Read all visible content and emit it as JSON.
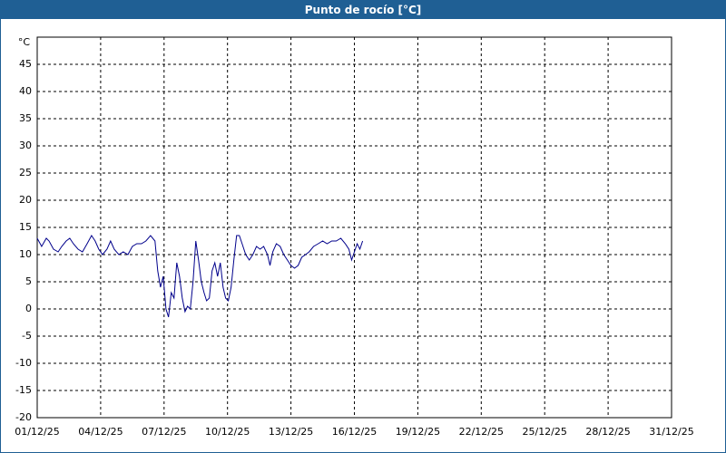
{
  "chart_data": {
    "type": "line",
    "title": "Punto de rocío [°C]",
    "y_axis_label": "°C",
    "x": [
      1.0,
      1.21,
      1.43,
      1.56,
      1.77,
      1.99,
      2.16,
      2.37,
      2.54,
      2.71,
      2.93,
      3.14,
      3.36,
      3.57,
      3.74,
      3.91,
      4.09,
      4.3,
      4.47,
      4.64,
      4.86,
      5.07,
      5.29,
      5.5,
      5.71,
      5.93,
      6.14,
      6.36,
      6.57,
      6.7,
      6.83,
      6.96,
      7.09,
      7.21,
      7.34,
      7.47,
      7.6,
      7.73,
      7.86,
      7.99,
      8.11,
      8.24,
      8.37,
      8.5,
      8.63,
      8.76,
      8.89,
      9.01,
      9.14,
      9.27,
      9.4,
      9.53,
      9.66,
      9.79,
      9.91,
      10.04,
      10.17,
      10.3,
      10.43,
      10.56,
      10.69,
      10.86,
      11.03,
      11.2,
      11.37,
      11.54,
      11.71,
      11.89,
      12.01,
      12.14,
      12.31,
      12.49,
      12.66,
      12.83,
      13.0,
      13.17,
      13.34,
      13.51,
      13.69,
      13.86,
      14.07,
      14.29,
      14.5,
      14.71,
      14.93,
      15.14,
      15.36,
      15.57,
      15.74,
      15.87,
      16.0,
      16.13,
      16.26,
      16.39
    ],
    "values": [
      13,
      11.5,
      13,
      12.5,
      11,
      10.5,
      11.5,
      12.5,
      13,
      12,
      11,
      10.5,
      12,
      13.5,
      12.5,
      11,
      10,
      11,
      12.5,
      11,
      10,
      10.5,
      10,
      11.5,
      12,
      12,
      12.5,
      13.5,
      12.5,
      7,
      4,
      6,
      0,
      -1.5,
      3,
      2,
      8.5,
      6,
      2,
      -0.5,
      0.5,
      0,
      5,
      12.5,
      9,
      5,
      3,
      1.5,
      2,
      7,
      8.5,
      6,
      8.5,
      4,
      2,
      1.5,
      4,
      9,
      13.5,
      13.5,
      12,
      10,
      9,
      10,
      11.5,
      11,
      11.5,
      10,
      8,
      10.5,
      12,
      11.5,
      10,
      9,
      8,
      7.5,
      8,
      9.5,
      10,
      10.5,
      11.5,
      12,
      12.5,
      12,
      12.5,
      12.5,
      13,
      12,
      11,
      9,
      10.5,
      12,
      11,
      12.5
    ],
    "color": "#00008b",
    "xlim": [
      1,
      31
    ],
    "xticks": [
      {
        "value": 1,
        "label": "01/12/25"
      },
      {
        "value": 4,
        "label": "04/12/25"
      },
      {
        "value": 7,
        "label": "07/12/25"
      },
      {
        "value": 10,
        "label": "10/12/25"
      },
      {
        "value": 13,
        "label": "13/12/25"
      },
      {
        "value": 16,
        "label": "16/12/25"
      },
      {
        "value": 19,
        "label": "19/12/25"
      },
      {
        "value": 22,
        "label": "22/12/25"
      },
      {
        "value": 25,
        "label": "25/12/25"
      },
      {
        "value": 28,
        "label": "28/12/25"
      },
      {
        "value": 31,
        "label": "31/12/25"
      }
    ],
    "ylim": [
      -20,
      50
    ],
    "yticks": [
      -20,
      -15,
      -10,
      -5,
      0,
      5,
      10,
      15,
      20,
      25,
      30,
      35,
      40,
      45
    ],
    "grid": true
  }
}
